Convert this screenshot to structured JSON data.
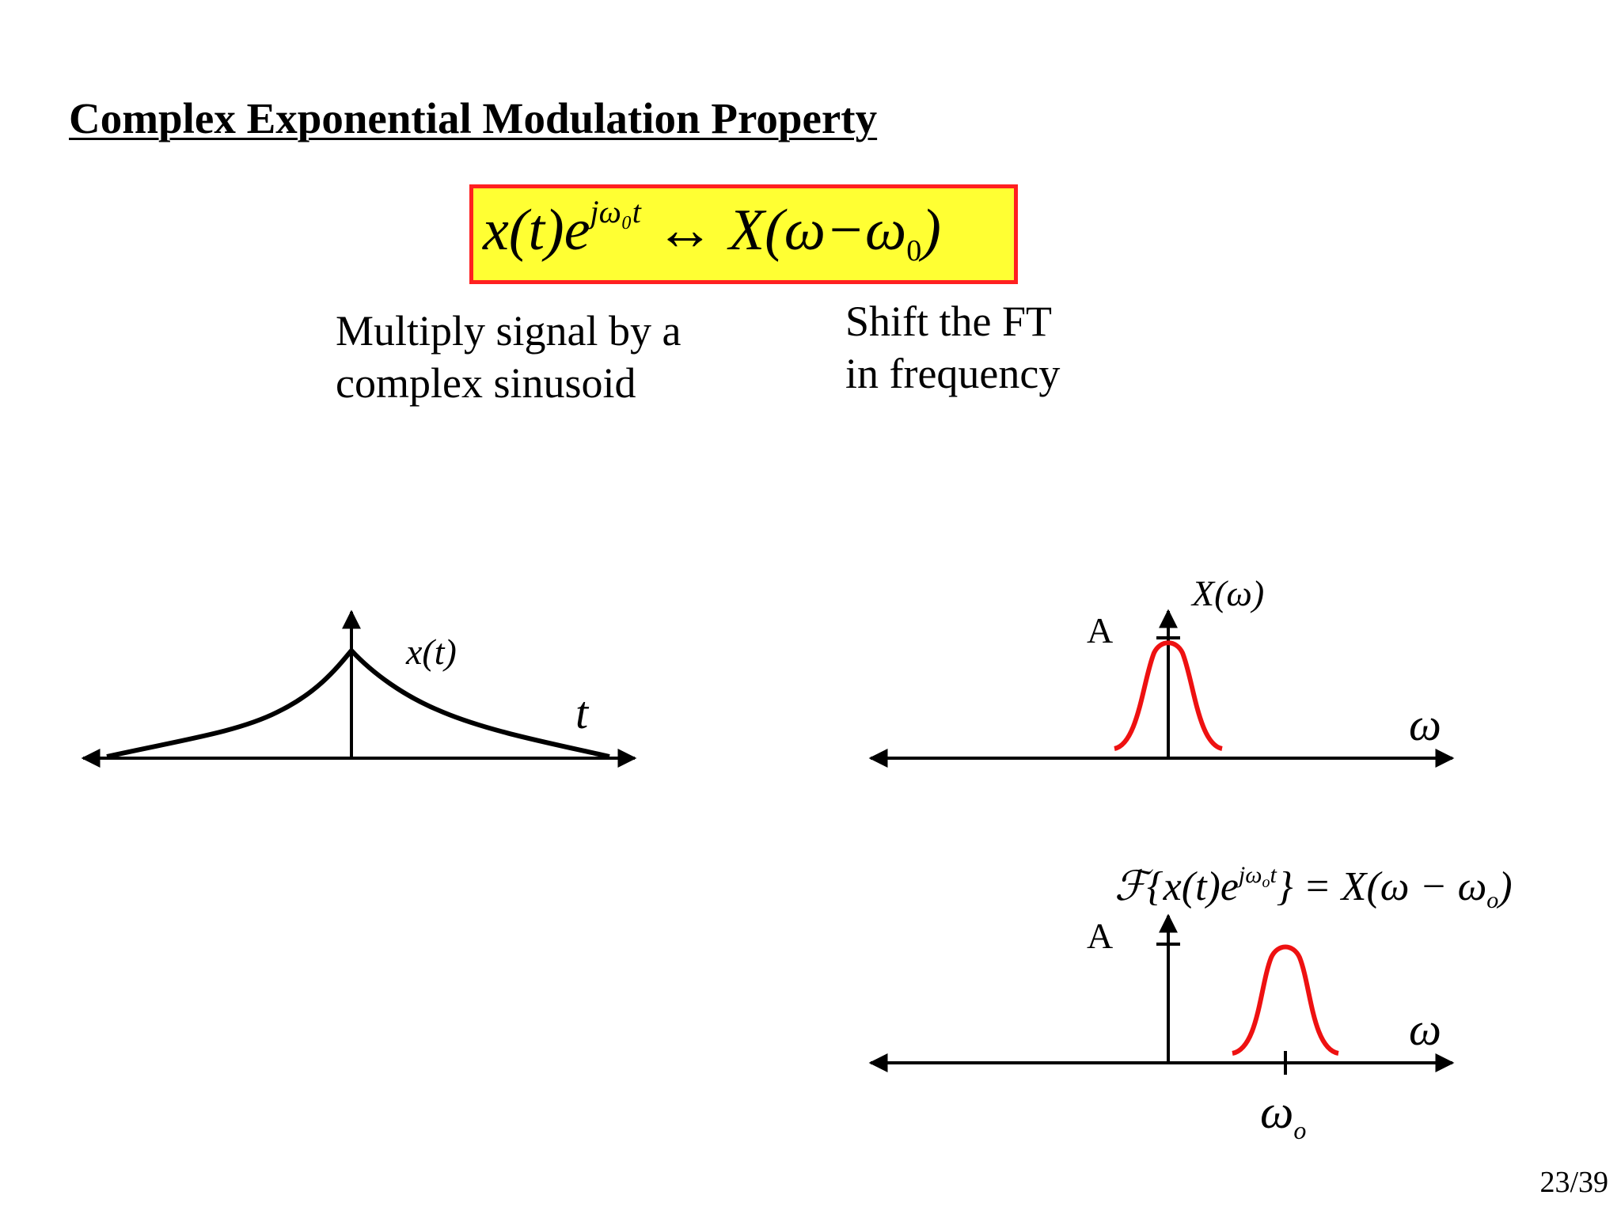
{
  "title": "Complex Exponential Modulation Property",
  "formula": {
    "lhs_base": "x(t)e",
    "lhs_exp": "jω₀t",
    "arrow": "↔",
    "rhs_pre": "X(ω−ω",
    "rhs_sub": "0",
    "rhs_post": ")"
  },
  "notes": {
    "left_line1": "Multiply signal by a",
    "left_line2": "complex sinusoid",
    "right_line1": "Shift the FT",
    "right_line2": "in frequency"
  },
  "plot_time": {
    "signal_label": "x(t)",
    "axis_label": "t"
  },
  "plot_freq_top": {
    "signal_label": "X(ω)",
    "amplitude_label": "A",
    "axis_label": "ω"
  },
  "plot_freq_bottom": {
    "signal_label": "ℱ{x(t)e^{jω_o t}} = X(ω−ω_o)",
    "label_pre": "ℱ{x(t)e",
    "label_exp": "jω",
    "label_exp_sub": "o",
    "label_exp_t": "t",
    "label_post": "} = X(ω − ω",
    "label_sub": "o",
    "label_end": ")",
    "amplitude_label": "A",
    "axis_label": "ω",
    "tick_label": "ω",
    "tick_label_sub": "o"
  },
  "colors": {
    "box_fill": "#ffff33",
    "box_border": "#ff2020",
    "spectrum": "#ee1111",
    "axis": "#000000"
  },
  "page_number": "23/39"
}
